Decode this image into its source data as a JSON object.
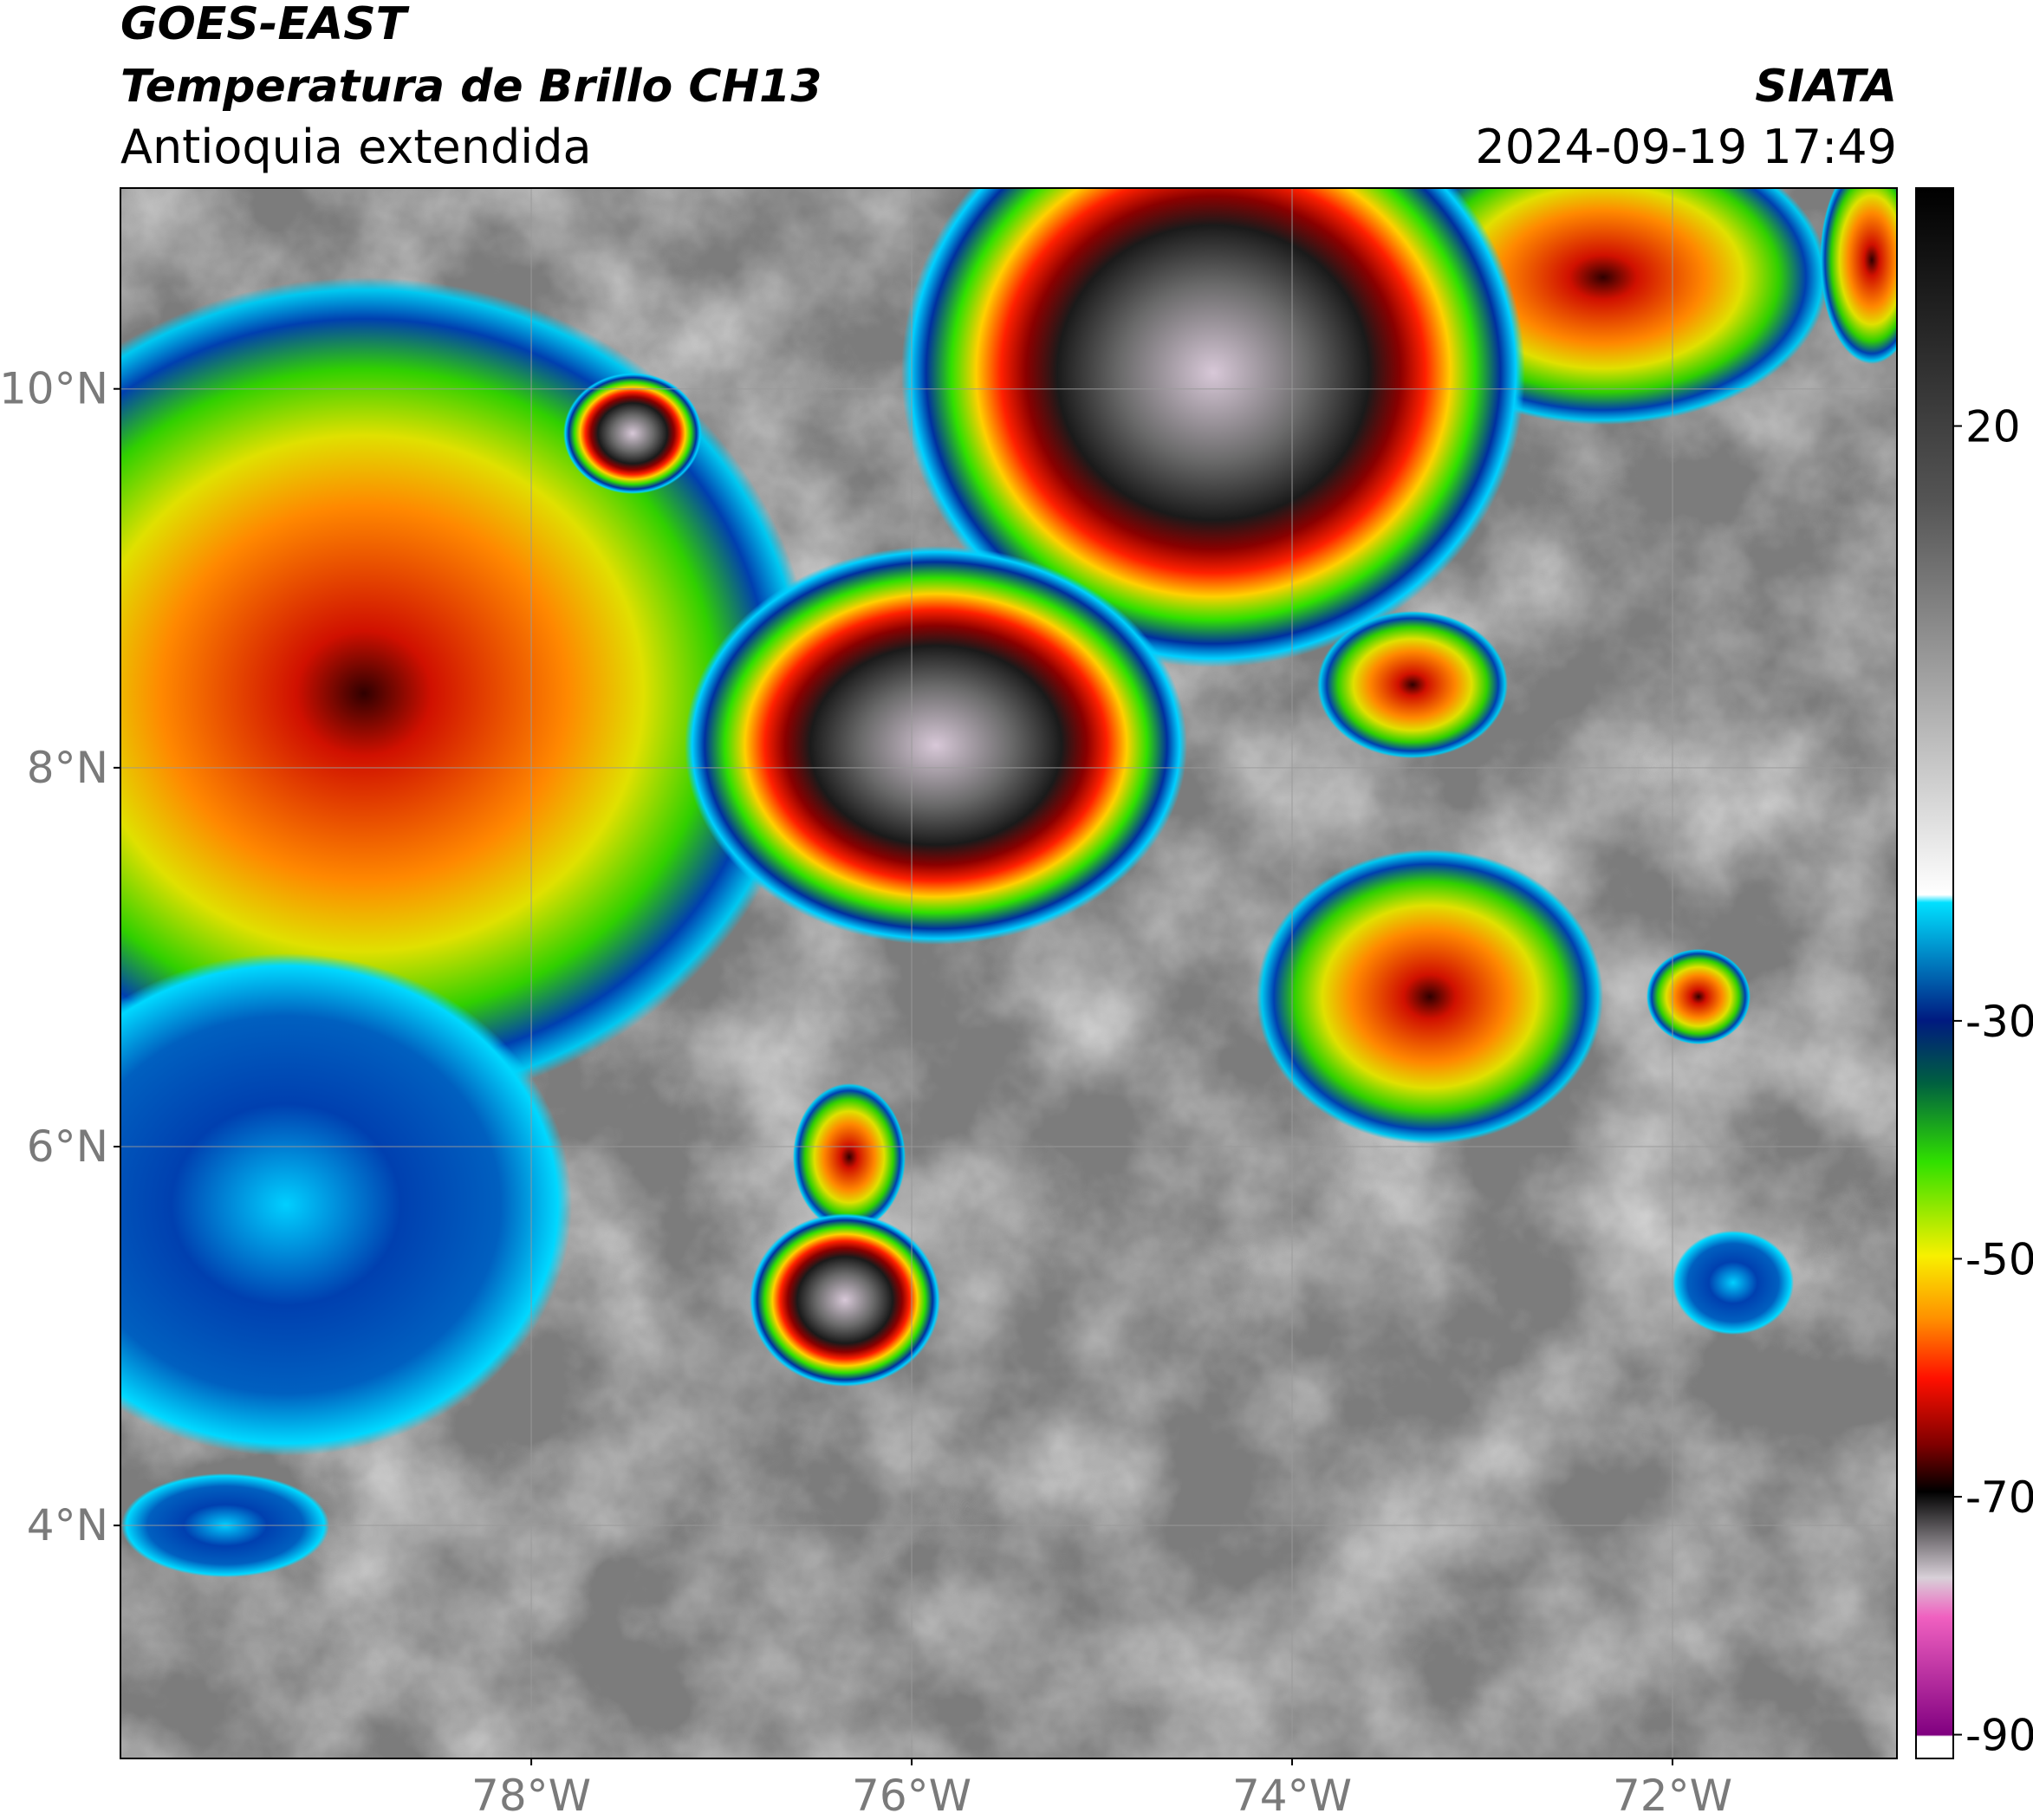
{
  "header": {
    "satellite": "GOES-EAST",
    "product": "Temperatura de Brillo CH13",
    "region": "Antioquia extendida",
    "source": "SIATA",
    "datetime": "2024-09-19 17:49"
  },
  "map": {
    "latlim": [
      2.77,
      11.06
    ],
    "lonlim": [
      -80.16,
      -70.82
    ],
    "lat_ticks": [
      {
        "value": 10,
        "label": "10°N"
      },
      {
        "value": 8,
        "label": "8°N"
      },
      {
        "value": 6,
        "label": "6°N"
      },
      {
        "value": 4,
        "label": "4°N"
      }
    ],
    "lon_ticks": [
      {
        "value": -78,
        "label": "78°W"
      },
      {
        "value": -76,
        "label": "76°W"
      },
      {
        "value": -74,
        "label": "74°W"
      },
      {
        "value": -72,
        "label": "72°W"
      }
    ],
    "grid": true
  },
  "colorbar": {
    "lim": [
      -92,
      40
    ],
    "ticks": [
      20,
      -30,
      -50,
      -70,
      -90
    ]
  }
}
